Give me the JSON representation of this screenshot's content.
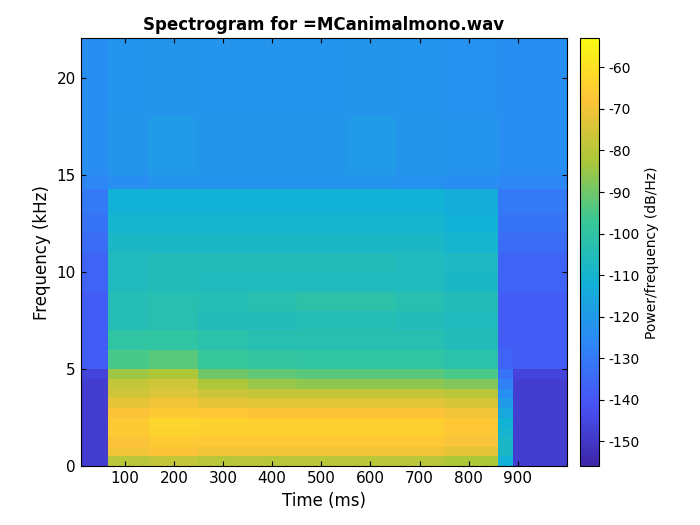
{
  "chart_data": {
    "type": "heatmap",
    "title": "Spectrogram for =MCanimalmono.wav",
    "x_label": "Time (ms)",
    "y_label": "Frequency (kHz)",
    "colorbar_label": "Power/frequency (dB/Hz)",
    "xlim": [
      10,
      1000
    ],
    "ylim": [
      0,
      22.05
    ],
    "xticks": [
      100,
      200,
      300,
      400,
      500,
      600,
      700,
      800,
      900
    ],
    "yticks": [
      0,
      5,
      10,
      15,
      20
    ],
    "color_range": [
      -156,
      -53
    ],
    "color_ticks": [
      -150,
      -140,
      -130,
      -120,
      -110,
      -100,
      -90,
      -80,
      -70,
      -60
    ],
    "x_edges": [
      10,
      65,
      150,
      250,
      350,
      450,
      550,
      650,
      750,
      860,
      890,
      1000
    ],
    "y_edges": [
      0,
      0.5,
      1,
      1.5,
      2,
      2.5,
      3,
      3.5,
      4,
      4.5,
      5,
      6,
      7,
      8,
      9,
      10,
      11,
      12,
      13,
      14.3,
      15,
      18,
      22.05
    ],
    "cells": [
      [
        -148,
        -80,
        -78,
        -80,
        -80,
        -80,
        -80,
        -80,
        -82,
        -112,
        -148
      ],
      [
        -148,
        -70,
        -68,
        -70,
        -70,
        -70,
        -70,
        -70,
        -72,
        -108,
        -148
      ],
      [
        -148,
        -68,
        -66,
        -67,
        -67,
        -67,
        -67,
        -67,
        -69,
        -108,
        -148
      ],
      [
        -148,
        -66,
        -64,
        -65,
        -65,
        -65,
        -65,
        -65,
        -67,
        -110,
        -148
      ],
      [
        -148,
        -66,
        -63,
        -64,
        -65,
        -65,
        -65,
        -65,
        -67,
        -112,
        -148
      ],
      [
        -148,
        -68,
        -66,
        -67,
        -68,
        -68,
        -68,
        -68,
        -70,
        -115,
        -148
      ],
      [
        -148,
        -72,
        -70,
        -72,
        -73,
        -73,
        -73,
        -73,
        -75,
        -120,
        -148
      ],
      [
        -148,
        -76,
        -74,
        -77,
        -78,
        -78,
        -78,
        -78,
        -80,
        -124,
        -148
      ],
      [
        -148,
        -78,
        -76,
        -82,
        -85,
        -86,
        -86,
        -86,
        -88,
        -128,
        -148
      ],
      [
        -146,
        -84,
        -82,
        -90,
        -92,
        -93,
        -93,
        -93,
        -95,
        -132,
        -146
      ],
      [
        -138,
        -95,
        -93,
        -98,
        -99,
        -100,
        -100,
        -100,
        -102,
        -136,
        -138
      ],
      [
        -138,
        -100,
        -100,
        -102,
        -103,
        -103,
        -103,
        -103,
        -105,
        -138,
        -138
      ],
      [
        -138,
        -104,
        -103,
        -105,
        -105,
        -104,
        -104,
        -105,
        -106,
        -138,
        -138
      ],
      [
        -138,
        -104,
        -103,
        -104,
        -103,
        -101,
        -101,
        -103,
        -105,
        -138,
        -138
      ],
      [
        -136,
        -106,
        -105,
        -106,
        -106,
        -106,
        -106,
        -106,
        -108,
        -136,
        -136
      ],
      [
        -136,
        -106,
        -105,
        -105,
        -105,
        -105,
        -105,
        -106,
        -107,
        -136,
        -136
      ],
      [
        -134,
        -108,
        -108,
        -108,
        -108,
        -108,
        -108,
        -108,
        -110,
        -134,
        -134
      ],
      [
        -132,
        -110,
        -110,
        -110,
        -110,
        -110,
        -110,
        -110,
        -112,
        -132,
        -132
      ],
      [
        -130,
        -112,
        -112,
        -112,
        -112,
        -112,
        -112,
        -112,
        -113,
        -130,
        -130
      ],
      [
        -126,
        -124,
        -122,
        -122,
        -122,
        -122,
        -122,
        -123,
        -124,
        -126,
        -126
      ],
      [
        -124,
        -121,
        -120,
        -121,
        -121,
        -121,
        -120,
        -121,
        -122,
        -124,
        -124
      ],
      [
        -124,
        -122,
        -121,
        -122,
        -122,
        -122,
        -121,
        -122,
        -123,
        -124,
        -124
      ]
    ]
  }
}
